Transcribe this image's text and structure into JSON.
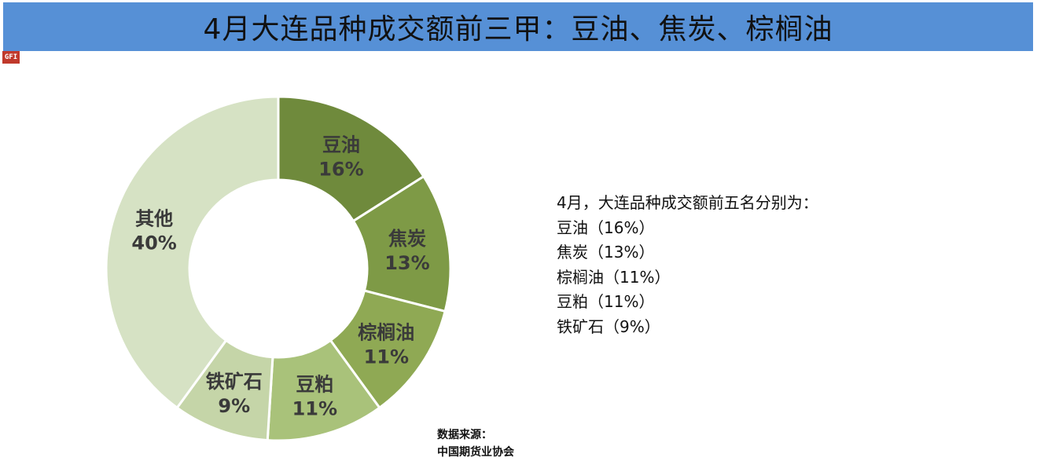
{
  "title": "4月大连品种成交额前三甲：豆油、焦炭、棕榈油",
  "logo_text": "GFI",
  "chart_data": {
    "type": "pie",
    "variant": "donut",
    "slices": [
      {
        "name": "豆油",
        "value": 16,
        "label": "16%",
        "color": "#6f8a3c"
      },
      {
        "name": "焦炭",
        "value": 13,
        "label": "13%",
        "color": "#7e9a46"
      },
      {
        "name": "棕榈油",
        "value": 11,
        "label": "11%",
        "color": "#8fa954"
      },
      {
        "name": "豆粕",
        "value": 11,
        "label": "11%",
        "color": "#a9c27a"
      },
      {
        "name": "铁矿石",
        "value": 9,
        "label": "9%",
        "color": "#c5d5a8"
      },
      {
        "name": "其他",
        "value": 40,
        "label": "40%",
        "color": "#d6e2c4"
      }
    ]
  },
  "summary": {
    "heading": "4月，大连品种成交额前五名分别为：",
    "items": [
      "豆油（16%）",
      "焦炭（13%）",
      "棕榈油（11%）",
      "豆粕（11%）",
      "铁矿石（9%）"
    ]
  },
  "source": {
    "line1": "数据来源：",
    "line2": "中国期货业协会"
  }
}
